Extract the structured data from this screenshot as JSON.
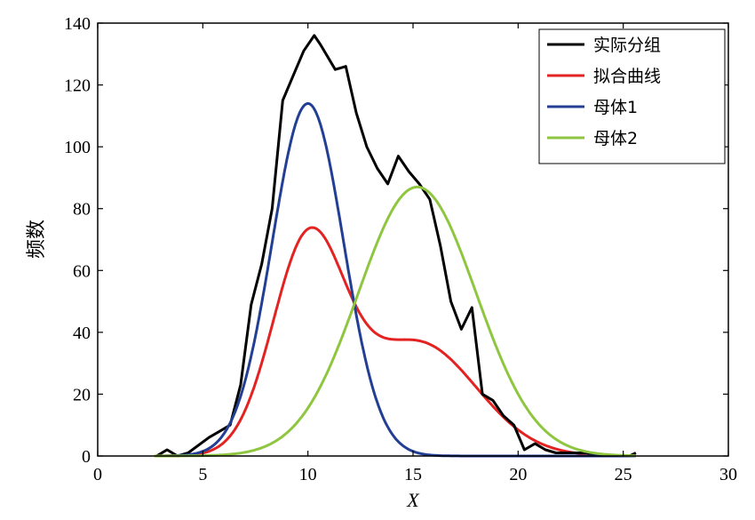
{
  "chart_data": {
    "type": "line",
    "title": "",
    "xlabel": "X",
    "ylabel": "频数",
    "xlim": [
      0,
      30
    ],
    "ylim": [
      0,
      140
    ],
    "xticks": [
      "0",
      "5",
      "10",
      "15",
      "20",
      "25",
      "30"
    ],
    "yticks": [
      "0",
      "20",
      "40",
      "60",
      "80",
      "100",
      "120",
      "140"
    ],
    "grid": false,
    "legend_position": "top-right",
    "series": [
      {
        "name": "实际分组",
        "color": "#000000",
        "x": [
          2.8,
          3.3,
          3.8,
          4.3,
          5.3,
          5.8,
          6.3,
          6.8,
          7.3,
          7.8,
          8.3,
          8.8,
          9.3,
          9.8,
          10.3,
          10.6,
          11.3,
          11.8,
          12.3,
          12.8,
          13.3,
          13.8,
          14.3,
          14.8,
          15.3,
          15.8,
          16.3,
          16.8,
          17.3,
          17.8,
          18.3,
          18.8,
          19.3,
          19.8,
          20.3,
          20.8,
          21.3,
          21.8,
          22.3,
          22.8,
          23.3,
          23.8,
          24.3,
          24.8,
          25.3,
          25.6
        ],
        "y": [
          0,
          2,
          0,
          1,
          6,
          8,
          10,
          23,
          49,
          62,
          80,
          115,
          123,
          131,
          136,
          133,
          125,
          126,
          111,
          100,
          93,
          88,
          97,
          92,
          88,
          83,
          68,
          50,
          41,
          48,
          20,
          18,
          13,
          10,
          2,
          4,
          2,
          1,
          1,
          1,
          1,
          0,
          0,
          0,
          0,
          1
        ]
      },
      {
        "name": "拟合曲线",
        "color": "#e32322",
        "type": "mixture",
        "components": [
          {
            "weight": 285,
            "mu": 10,
            "sigma": 1.7
          },
          {
            "weight": 258,
            "mu": 15.2,
            "sigma": 2.8
          }
        ],
        "x_range": [
          2.7,
          25.6
        ]
      },
      {
        "name": "母体1",
        "color": "#233f94",
        "type": "gaussian",
        "amplitude": 114,
        "mu": 10,
        "sigma": 1.7,
        "x_range": [
          2.7,
          25.6
        ]
      },
      {
        "name": "母体2",
        "color": "#8fc640",
        "type": "gaussian",
        "amplitude": 87,
        "mu": 15.2,
        "sigma": 2.8,
        "x_range": [
          2.7,
          25.6
        ]
      }
    ]
  }
}
